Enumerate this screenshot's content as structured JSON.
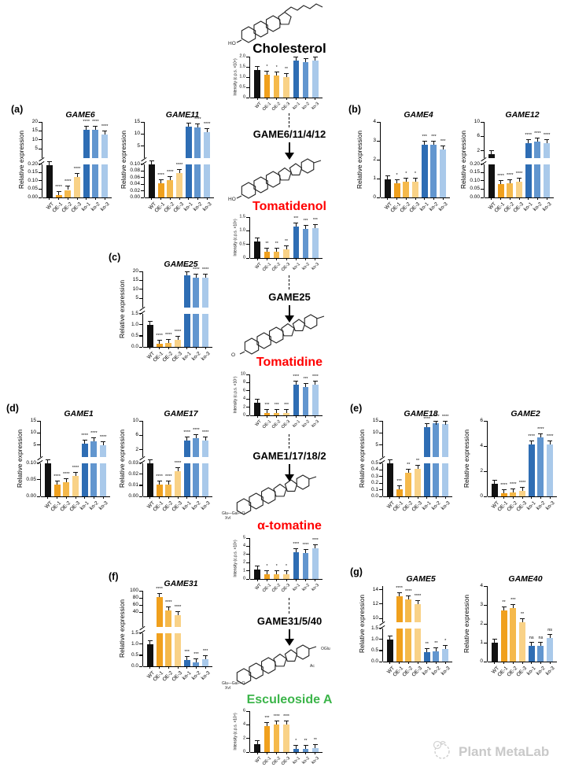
{
  "panels": {
    "a": "(a)",
    "b": "(b)",
    "c": "(c)",
    "d": "(d)",
    "e": "(e)",
    "f": "(f)",
    "g": "(g)"
  },
  "watermark": "Plant MetaLab",
  "categories": [
    "WT",
    "OE-1",
    "OE-2",
    "OE-3",
    "ko-1",
    "ko-2",
    "ko-3"
  ],
  "palette": {
    "bar_colors": [
      "#111111",
      "#F0A01D",
      "#F5B94B",
      "#F9D287",
      "#2E6DB4",
      "#6296CF",
      "#A9C9EA"
    ],
    "axis_color": "#000000"
  },
  "pathway": {
    "enzymes": [
      {
        "label": "GAME6/11/4/12"
      },
      {
        "label": "GAME25"
      },
      {
        "label": "GAME1/17/18/2"
      },
      {
        "label": "GAME31/5/40"
      }
    ],
    "compounds": [
      {
        "name": "Cholesterol",
        "color": "#000000",
        "annotations": [
          "HO"
        ]
      },
      {
        "name": "Tomatidenol",
        "color": "#FF0000",
        "annotations": [
          "HO"
        ]
      },
      {
        "name": "Tomatidine",
        "color": "#FF0000",
        "annotations": [
          "O"
        ]
      },
      {
        "name": "α-tomatine",
        "color": "#FF0000",
        "annotations": [
          "Glu—Gal—O",
          "Xyl"
        ]
      },
      {
        "name": "Esculeoside A",
        "color": "#3CB54A",
        "annotations": [
          "Glu—Gal—O",
          "Xyl",
          "OGlu",
          "Ac"
        ]
      }
    ]
  },
  "chart_data": {
    "game6": {
      "type": "bar",
      "panel": "a",
      "title": "GAME6",
      "ylabel": "Relative expression",
      "values": [
        0.195,
        0.012,
        0.045,
        0.125,
        15.6,
        15.8,
        12.9
      ],
      "sig": [
        "",
        "****",
        "****",
        "****",
        "****",
        "****",
        "****"
      ],
      "axis": {
        "broken": true,
        "lower": {
          "max": 0.2,
          "ticks": [
            "0.00",
            "0.05",
            "0.10",
            "0.15",
            "0.20"
          ]
        },
        "upper": {
          "min": 0,
          "max": 20,
          "ticks": [
            "5",
            "10",
            "15",
            "20"
          ]
        }
      }
    },
    "game11": {
      "type": "bar",
      "panel": "a",
      "title": "GAME11",
      "ylabel": "Relative expression",
      "values": [
        0.1,
        0.042,
        0.051,
        0.073,
        13.0,
        12.8,
        10.8
      ],
      "sig": [
        "",
        "****",
        "****",
        "****",
        "****",
        "****",
        "****"
      ],
      "axis": {
        "broken": true,
        "lower": {
          "max": 0.1,
          "ticks": [
            "0.00",
            "0.02",
            "0.04",
            "0.06",
            "0.08",
            "0.10"
          ]
        },
        "upper": {
          "min": 0,
          "max": 15,
          "ticks": [
            "5",
            "10",
            "15"
          ]
        }
      }
    },
    "game4": {
      "type": "bar",
      "panel": "b",
      "title": "GAME4",
      "ylabel": "Relative expression",
      "values": [
        0.97,
        0.75,
        0.82,
        0.82,
        2.78,
        2.78,
        2.55
      ],
      "sig": [
        "",
        "*",
        "*",
        "*",
        "***",
        "***",
        "***"
      ],
      "axis": {
        "broken": false,
        "max": 4,
        "ticks": [
          "0",
          "1",
          "2",
          "3",
          "4"
        ]
      }
    },
    "game12": {
      "type": "bar",
      "panel": "b",
      "title": "GAME12",
      "ylabel": "Relative expression",
      "values": [
        1.0,
        0.08,
        0.087,
        0.095,
        4.0,
        4.5,
        4.1
      ],
      "sig": [
        "",
        "****",
        "****",
        "****",
        "****",
        "****",
        "****"
      ],
      "axis": {
        "broken": true,
        "lower": {
          "max": 0.2,
          "ticks": [
            "0.00",
            "0.05",
            "0.10",
            "0.15",
            "0.20"
          ]
        },
        "upper": {
          "min": 0,
          "max": 10,
          "ticks": [
            "2",
            "6",
            "10"
          ]
        }
      }
    },
    "game25": {
      "type": "bar",
      "panel": "c",
      "title": "GAME25",
      "ylabel": "Relative expression",
      "values": [
        0.98,
        0.15,
        0.18,
        0.33,
        17.8,
        16.7,
        16.3
      ],
      "sig": [
        "",
        "****",
        "****",
        "****",
        "****",
        "****",
        "****"
      ],
      "axis": {
        "broken": true,
        "lower": {
          "max": 1.5,
          "ticks": [
            "0.0",
            "0.5",
            "1.0",
            "1.5"
          ]
        },
        "upper": {
          "min": 0,
          "max": 20,
          "ticks": [
            "5",
            "10",
            "15",
            "20"
          ]
        }
      }
    },
    "game1": {
      "type": "bar",
      "panel": "d",
      "title": "GAME1",
      "ylabel": "Relative expression",
      "values": [
        0.1,
        0.035,
        0.043,
        0.061,
        5.4,
        6.5,
        4.8
      ],
      "sig": [
        "",
        "****",
        "****",
        "****",
        "****",
        "****",
        "****"
      ],
      "axis": {
        "broken": true,
        "lower": {
          "max": 0.1,
          "ticks": [
            "0.00",
            "0.05",
            "0.10"
          ]
        },
        "upper": {
          "min": 0,
          "max": 15,
          "ticks": [
            "5",
            "10",
            "15"
          ]
        }
      }
    },
    "game17": {
      "type": "bar",
      "panel": "d",
      "title": "GAME17",
      "ylabel": "Relative expression",
      "values": [
        0.03,
        0.011,
        0.0105,
        0.023,
        4.6,
        5.2,
        4.5
      ],
      "sig": [
        "",
        "****",
        "****",
        "****",
        "****",
        "****",
        "****"
      ],
      "axis": {
        "broken": true,
        "lower": {
          "max": 0.03,
          "ticks": [
            "0.00",
            "0.01",
            "0.02",
            "0.03"
          ]
        },
        "upper": {
          "min": 0,
          "max": 10,
          "ticks": [
            "2",
            "6",
            "10"
          ]
        }
      }
    },
    "game18": {
      "type": "bar",
      "panel": "e",
      "title": "GAME18",
      "ylabel": "Relative expression",
      "values": [
        0.5,
        0.11,
        0.36,
        0.42,
        12.5,
        14.0,
        13.8
      ],
      "sig": [
        "",
        "***",
        "**",
        "**",
        "****",
        "****",
        "****"
      ],
      "axis": {
        "broken": true,
        "lower": {
          "max": 0.5,
          "ticks": [
            "0.0",
            "0.1",
            "0.2",
            "0.3",
            "0.4",
            "0.5"
          ]
        },
        "upper": {
          "min": 0,
          "max": 15,
          "ticks": [
            "5",
            "10",
            "15"
          ]
        }
      }
    },
    "game2": {
      "type": "bar",
      "panel": "e",
      "title": "GAME2",
      "ylabel": "Relative expression",
      "values": [
        1.0,
        0.22,
        0.33,
        0.45,
        4.15,
        4.7,
        4.1
      ],
      "sig": [
        "",
        "****",
        "****",
        "****",
        "****",
        "****",
        "****"
      ],
      "axis": {
        "broken": false,
        "max": 6,
        "ticks": [
          "0",
          "2",
          "4",
          "6"
        ]
      }
    },
    "game31": {
      "type": "bar",
      "panel": "f",
      "title": "GAME31",
      "ylabel": "Relative expression",
      "values": [
        0.98,
        83,
        46,
        33,
        0.28,
        0.18,
        0.33
      ],
      "sig": [
        "",
        "****",
        "****",
        "****",
        "***",
        "***",
        "***"
      ],
      "axis": {
        "broken": true,
        "lower": {
          "max": 1.5,
          "ticks": [
            "0.0",
            "0.5",
            "1.0",
            "1.5"
          ]
        },
        "upper": {
          "min": 0,
          "max": 100,
          "ticks": [
            "40",
            "60",
            "80",
            "100"
          ]
        }
      }
    },
    "game5": {
      "type": "bar",
      "panel": "g",
      "title": "GAME5",
      "ylabel": "Relative expression",
      "values": [
        1.0,
        13.1,
        12.6,
        12.0,
        0.42,
        0.47,
        0.58
      ],
      "sig": [
        "",
        "****",
        "****",
        "****",
        "**",
        "**",
        "*"
      ],
      "axis": {
        "broken": true,
        "lower": {
          "max": 1.5,
          "ticks": [
            "0.0",
            "0.5",
            "1.0",
            "1.5"
          ]
        },
        "upper": {
          "min": 9.5,
          "max": 14.5,
          "ticks": [
            "10",
            "12",
            "14"
          ]
        }
      }
    },
    "game40": {
      "type": "bar",
      "panel": "g",
      "title": "GAME40",
      "ylabel": "Relative expression",
      "values": [
        0.98,
        2.7,
        2.85,
        2.1,
        0.85,
        0.85,
        1.25
      ],
      "sig": [
        "",
        "**",
        "***",
        "**",
        "ns",
        "ns",
        "ns"
      ],
      "axis": {
        "broken": false,
        "max": 4,
        "ticks": [
          "0",
          "1",
          "2",
          "3",
          "4"
        ]
      }
    },
    "chol": {
      "type": "bar",
      "panel": "pathway",
      "title": "",
      "ylabel": "Intensity (c.p.s. ×10⁴)",
      "values": [
        1.35,
        1.1,
        1.08,
        1.0,
        1.8,
        1.72,
        1.8
      ],
      "sig": [
        "",
        "*",
        "*",
        "**",
        "**",
        "*",
        "**"
      ],
      "axis": {
        "broken": false,
        "max": 2,
        "ticks": [
          "0",
          "0.5",
          "1.0",
          "1.5",
          "2.0"
        ]
      }
    },
    "tomatidenol": {
      "type": "bar",
      "panel": "pathway",
      "title": "",
      "ylabel": "Intensity (c.p.s. ×10⁶)",
      "values": [
        0.62,
        0.23,
        0.23,
        0.33,
        1.15,
        1.07,
        1.1
      ],
      "sig": [
        "",
        "**",
        "**",
        "**",
        "***",
        "***",
        "***"
      ],
      "axis": {
        "broken": false,
        "max": 1.5,
        "ticks": [
          "0",
          "0.5",
          "1.0",
          "1.5"
        ]
      }
    },
    "tomatidine": {
      "type": "bar",
      "panel": "pathway",
      "title": "",
      "ylabel": "Intensity (c.p.s. ×10⁷)",
      "values": [
        3.0,
        0.6,
        0.6,
        0.6,
        7.5,
        7.0,
        7.5
      ],
      "sig": [
        "",
        "***",
        "***",
        "***",
        "****",
        "***",
        "****"
      ],
      "axis": {
        "broken": false,
        "max": 10,
        "ticks": [
          "0",
          "2",
          "4",
          "6",
          "8",
          "10"
        ]
      }
    },
    "atomatine": {
      "type": "bar",
      "panel": "pathway",
      "title": "",
      "ylabel": "Intensity (c.p.s. ×10⁶)",
      "values": [
        1.15,
        0.55,
        0.6,
        0.55,
        3.25,
        3.2,
        3.75
      ],
      "sig": [
        "",
        "*",
        "*",
        "*",
        "****",
        "****",
        "****"
      ],
      "axis": {
        "broken": false,
        "max": 5,
        "ticks": [
          "0",
          "1",
          "2",
          "3",
          "4",
          "5"
        ]
      }
    },
    "esculeoside": {
      "type": "bar",
      "panel": "pathway",
      "title": "",
      "ylabel": "Intensity (c.p.s. ×10⁴)",
      "values": [
        1.2,
        3.8,
        4.0,
        4.05,
        0.45,
        0.5,
        0.55
      ],
      "sig": [
        "",
        "***",
        "****",
        "****",
        "*",
        "**",
        "**"
      ],
      "axis": {
        "broken": false,
        "max": 6,
        "ticks": [
          "0",
          "2",
          "4",
          "6"
        ]
      }
    }
  }
}
